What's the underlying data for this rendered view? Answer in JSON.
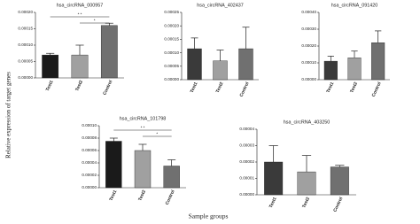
{
  "figure": {
    "ylabel": "Relative expression of target genes",
    "xlabel": "Sample groups"
  },
  "chart_data": [
    {
      "type": "bar",
      "title": "hsa_circRNA_000957",
      "categories": [
        "Test1",
        "Test2",
        "Control"
      ],
      "values": [
        7e-05,
        7e-05,
        0.00016
      ],
      "errors": [
        5e-06,
        3e-05,
        7e-06
      ],
      "colors": [
        "#1a1a1a",
        "#a0a0a0",
        "#707070"
      ],
      "ylim": [
        0,
        0.0002
      ],
      "yticks": [
        {
          "value": 0,
          "label": "0.00000"
        },
        {
          "value": 5e-05,
          "label": "0.00005"
        },
        {
          "value": 0.0001,
          "label": "0.00010"
        },
        {
          "value": 0.00015,
          "label": "0.00015"
        },
        {
          "value": 0.0002,
          "label": "0.00020"
        }
      ],
      "annotations": [
        {
          "text": "* *",
          "between": [
            "Test1",
            "Control"
          ]
        },
        {
          "text": "*",
          "between": [
            "Test2",
            "Control"
          ]
        }
      ]
    },
    {
      "type": "bar",
      "title": "hsa_circRNA_402437",
      "categories": [
        "Test1",
        "Test2",
        "Control"
      ],
      "values": [
        0.000115,
        7e-05,
        0.000115
      ],
      "errors": [
        4e-05,
        4e-05,
        8e-05
      ],
      "colors": [
        "#3a3a3a",
        "#a0a0a0",
        "#707070"
      ],
      "ylim": [
        0,
        0.00025
      ],
      "yticks": [
        {
          "value": 0,
          "label": "0.00000"
        },
        {
          "value": 5e-05,
          "label": "0.00005"
        },
        {
          "value": 0.0001,
          "label": "0.00010"
        },
        {
          "value": 0.00015,
          "label": "0.00015"
        },
        {
          "value": 0.0002,
          "label": "0.00020"
        },
        {
          "value": 0.00025,
          "label": "0.00025"
        }
      ]
    },
    {
      "type": "bar",
      "title": "hsa_circRNA_091420",
      "categories": [
        "Test1",
        "Test2",
        "Control"
      ],
      "values": [
        0.00011,
        0.00013,
        0.00022
      ],
      "errors": [
        3e-05,
        4e-05,
        7e-05
      ],
      "colors": [
        "#3a3a3a",
        "#a0a0a0",
        "#707070"
      ],
      "ylim": [
        0,
        0.0004
      ],
      "yticks": [
        {
          "value": 0,
          "label": "0.00000"
        },
        {
          "value": 0.0001,
          "label": "0.00010"
        },
        {
          "value": 0.0002,
          "label": "0.00020"
        },
        {
          "value": 0.0003,
          "label": "0.00030"
        },
        {
          "value": 0.0004,
          "label": "0.00040"
        }
      ]
    },
    {
      "type": "bar",
      "title": "hsa_circRNA_101798",
      "categories": [
        "Test1",
        "Test2",
        "Control"
      ],
      "values": [
        7.5e-05,
        6e-05,
        3.5e-05
      ],
      "errors": [
        5e-06,
        1e-05,
        1e-05
      ],
      "colors": [
        "#1a1a1a",
        "#a0a0a0",
        "#707070"
      ],
      "ylim": [
        0,
        0.0001
      ],
      "yticks": [
        {
          "value": 0,
          "label": "0.00000"
        },
        {
          "value": 2e-05,
          "label": "0.00002"
        },
        {
          "value": 4e-05,
          "label": "0.00004"
        },
        {
          "value": 6e-05,
          "label": "0.00006"
        },
        {
          "value": 8e-05,
          "label": "0.00008"
        },
        {
          "value": 0.0001,
          "label": "0.00010"
        }
      ],
      "annotations": [
        {
          "text": "* *",
          "between": [
            "Test1",
            "Control"
          ]
        },
        {
          "text": "*",
          "between": [
            "Test2",
            "Control"
          ]
        }
      ]
    },
    {
      "type": "bar",
      "title": "hsa_circRNA_403250",
      "categories": [
        "Test1",
        "Test2",
        "Control"
      ],
      "values": [
        2e-05,
        1.4e-05,
        1.7e-05
      ],
      "errors": [
        1e-05,
        1e-05,
        1e-06
      ],
      "colors": [
        "#3a3a3a",
        "#a0a0a0",
        "#707070"
      ],
      "ylim": [
        0,
        4e-05
      ],
      "yticks": [
        {
          "value": 0,
          "label": "0.00000"
        },
        {
          "value": 1e-05,
          "label": "0.00001"
        },
        {
          "value": 2e-05,
          "label": "0.00002"
        },
        {
          "value": 3e-05,
          "label": "0.00003"
        },
        {
          "value": 4e-05,
          "label": "0.00004"
        }
      ]
    }
  ]
}
